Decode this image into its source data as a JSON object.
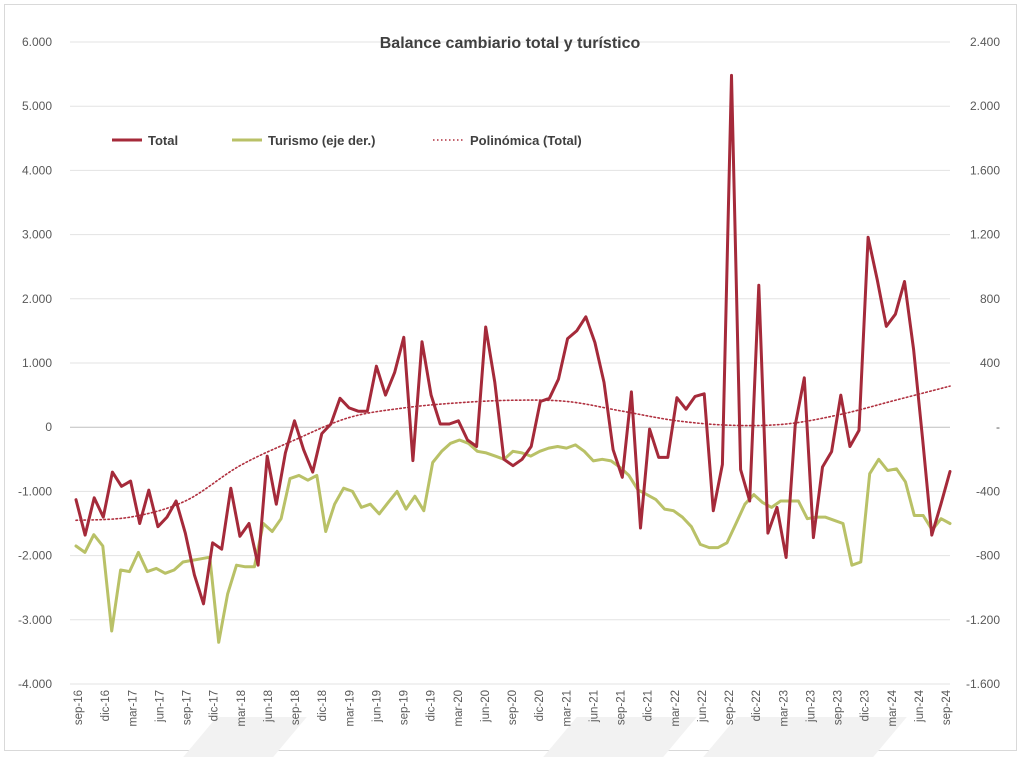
{
  "chart_data": {
    "type": "line",
    "title": "Balance cambiario total y turístico",
    "xlabel": "",
    "ylabel": "",
    "y_left": {
      "ylim": [
        -4000,
        6000
      ],
      "ticks": [
        -4000,
        -3000,
        -2000,
        -1000,
        0,
        1000,
        2000,
        3000,
        4000,
        5000,
        6000
      ],
      "tick_labels": [
        "-4.000",
        "-3.000",
        "-2.000",
        "-1.000",
        "0",
        "1.000",
        "2.000",
        "3.000",
        "4.000",
        "5.000",
        "6.000"
      ]
    },
    "y_right": {
      "ylim": [
        -1600,
        2400
      ],
      "ticks": [
        -1600,
        -1200,
        -800,
        -400,
        0,
        400,
        800,
        1200,
        1600,
        2000,
        2400
      ],
      "tick_labels": [
        "-1.600",
        "-1.200",
        "-800",
        "-400",
        "-",
        "400",
        "800",
        "1.200",
        "1.600",
        "2.000",
        "2.400"
      ]
    },
    "tick_labels": [
      "sep-16",
      "dic-16",
      "mar-17",
      "jun-17",
      "sep-17",
      "dic-17",
      "mar-18",
      "jun-18",
      "sep-18",
      "dic-18",
      "mar-19",
      "jun-19",
      "sep-19",
      "dic-19",
      "mar-20",
      "jun-20",
      "sep-20",
      "dic-20",
      "mar-21",
      "jun-21",
      "sep-21",
      "dic-21",
      "mar-22",
      "jun-22",
      "sep-22",
      "dic-22",
      "mar-23",
      "jun-23",
      "sep-23",
      "dic-23",
      "mar-24",
      "jun-24",
      "sep-24"
    ],
    "grid": true,
    "legend": "top-left",
    "series": [
      {
        "name": "Total",
        "axis": "left",
        "color": "#a52a3a",
        "values": [
          -1130,
          -1680,
          -1100,
          -1400,
          -700,
          -920,
          -840,
          -1500,
          -980,
          -1550,
          -1400,
          -1150,
          -1650,
          -2300,
          -2750,
          -1800,
          -1900,
          -950,
          -1700,
          -1500,
          -2150,
          -450,
          -1200,
          -400,
          100,
          -350,
          -700,
          -100,
          50,
          450,
          300,
          250,
          250,
          950,
          500,
          850,
          1400,
          -520,
          1330,
          500,
          50,
          50,
          100,
          -200,
          -300,
          1560,
          700,
          -500,
          -600,
          -500,
          -300,
          400,
          450,
          750,
          1380,
          1500,
          1720,
          1320,
          700,
          -350,
          -780,
          550,
          -1570,
          -30,
          -470,
          -470,
          460,
          280,
          480,
          520,
          -1300,
          -580,
          5480,
          -660,
          -1150,
          2210,
          -1650,
          -1250,
          -2030,
          30,
          770,
          -1720,
          -620,
          -380,
          500,
          -300,
          -50,
          2960,
          2300,
          1570,
          1760,
          2270,
          1210,
          -200,
          -1680,
          -1200,
          -690
        ]
      },
      {
        "name": "Turismo (eje der.)",
        "axis": "right",
        "color": "#b9c167",
        "values": [
          -740,
          -780,
          -670,
          -740,
          -1270,
          -890,
          -900,
          -780,
          -900,
          -880,
          -910,
          -890,
          -840,
          -830,
          -820,
          -810,
          -1340,
          -1040,
          -860,
          -870,
          -870,
          -600,
          -650,
          -570,
          -320,
          -300,
          -330,
          -300,
          -650,
          -480,
          -380,
          -400,
          -500,
          -480,
          -540,
          -470,
          -400,
          -510,
          -430,
          -520,
          -220,
          -150,
          -100,
          -80,
          -100,
          -150,
          -160,
          -180,
          -200,
          -150,
          -160,
          -180,
          -150,
          -130,
          -120,
          -130,
          -110,
          -150,
          -210,
          -200,
          -210,
          -250,
          -300,
          -390,
          -420,
          -450,
          -510,
          -520,
          -560,
          -620,
          -730,
          -750,
          -750,
          -720,
          -600,
          -480,
          -420,
          -470,
          -500,
          -460,
          -460,
          -460,
          -570,
          -560,
          -560,
          -580,
          -600,
          -860,
          -840,
          -290,
          -200,
          -270,
          -260,
          -340,
          -550,
          -550,
          -640,
          -570,
          -600
        ]
      },
      {
        "name": "Polinómica (Total)",
        "axis": "left",
        "color": "#b0303f",
        "style": "dotted",
        "values": [
          -1450,
          -1400,
          -1150,
          -600,
          -200,
          150,
          300,
          380,
          420,
          400,
          250,
          100,
          30,
          50,
          200,
          420,
          640
        ]
      }
    ]
  }
}
